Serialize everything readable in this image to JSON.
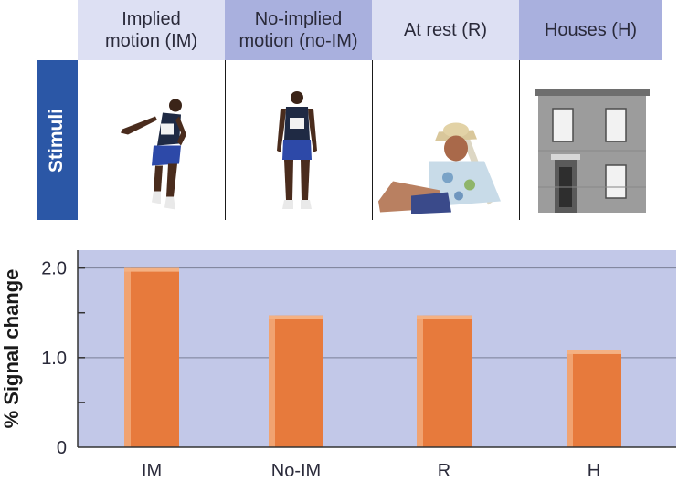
{
  "stimuli_header": {
    "conditions": [
      {
        "line1": "Implied",
        "line2": "motion (IM)"
      },
      {
        "line1": "No-implied",
        "line2": "motion (no-IM)"
      },
      {
        "line1": "At rest (R)",
        "line2": ""
      },
      {
        "line1": "Houses (H)",
        "line2": ""
      }
    ],
    "row_label": "Stimuli",
    "images": [
      "runner-implied-motion",
      "runner-standing",
      "man-at-rest-in-chair",
      "brick-house"
    ]
  },
  "chart_data": {
    "type": "bar",
    "categories": [
      "IM",
      "No-IM",
      "R",
      "H"
    ],
    "values": [
      2.0,
      1.47,
      1.47,
      1.08
    ],
    "ylabel": "% Signal change",
    "xlabel": "",
    "ylim": [
      0,
      2.2
    ],
    "yticks": [
      0,
      0.5,
      1.0,
      1.5,
      2.0
    ],
    "ytick_labels": [
      "0",
      "",
      "1.0",
      "",
      "2.0"
    ],
    "grid": true,
    "colors": {
      "plot_bg": "#c2c8e8",
      "bar": "#e77a3c",
      "bar_highlight": "#f4b183",
      "grid": "#7a7f96"
    }
  }
}
